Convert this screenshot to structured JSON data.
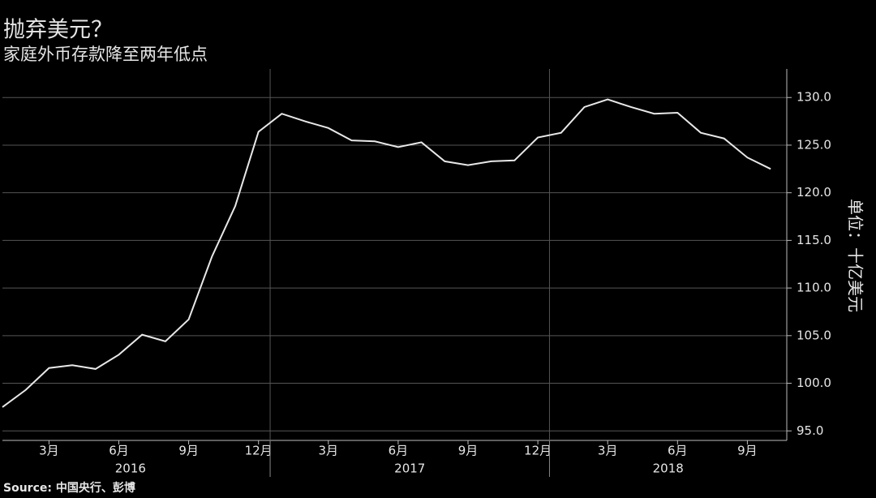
{
  "chart_data": {
    "type": "line",
    "title": "抛弃美元？",
    "subtitle": "家庭外币存款降至两年低点",
    "y_label": "单位：十亿美元",
    "source": "Source: 中国央行、彭博",
    "categories": [
      null,
      null,
      "3月",
      null,
      null,
      "6月",
      null,
      null,
      "9月",
      null,
      null,
      "12月",
      null,
      null,
      "3月",
      null,
      null,
      "6月",
      null,
      null,
      "9月",
      null,
      null,
      "12月",
      null,
      null,
      "3月",
      null,
      null,
      "6月",
      null,
      null,
      "9月",
      null
    ],
    "years": [
      "2016",
      "2017",
      "2018"
    ],
    "series": [
      {
        "name": "家庭外币存款",
        "color": "#e8e8e8",
        "values": [
          97.5,
          99.3,
          101.6,
          101.9,
          101.5,
          103.0,
          105.1,
          104.4,
          106.7,
          113.3,
          118.6,
          126.4,
          128.3,
          127.5,
          126.8,
          125.5,
          125.4,
          124.8,
          125.3,
          123.3,
          122.9,
          123.3,
          123.4,
          125.8,
          126.3,
          129.0,
          129.8,
          129.0,
          128.3,
          128.4,
          126.3,
          125.7,
          123.7,
          122.5
        ]
      }
    ],
    "ylim": [
      94,
      133
    ],
    "yticks": [
      {
        "value": 95,
        "label": "95.0"
      },
      {
        "value": 100,
        "label": "100.0"
      },
      {
        "value": 105,
        "label": "105.0"
      },
      {
        "value": 110,
        "label": "110.0"
      },
      {
        "value": 115,
        "label": "115.0"
      },
      {
        "value": 120,
        "label": "120.0"
      },
      {
        "value": 125,
        "label": "125.0"
      },
      {
        "value": 130,
        "label": "130.0"
      }
    ],
    "grid": true
  }
}
